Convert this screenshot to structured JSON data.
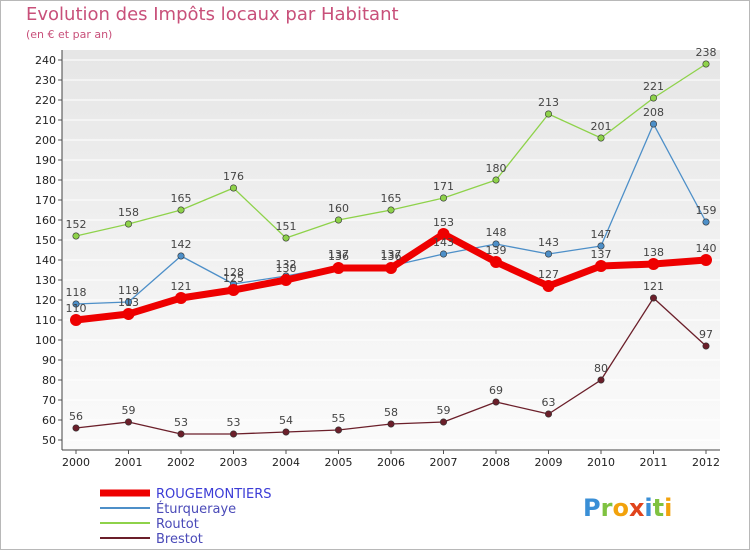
{
  "chart_data": {
    "type": "line",
    "title": "Evolution des Impôts locaux par Habitant",
    "subtitle": "(en € et par an)",
    "x": [
      "2000",
      "2001",
      "2002",
      "2003",
      "2004",
      "2005",
      "2006",
      "2007",
      "2008",
      "2009",
      "2010",
      "2011",
      "2012"
    ],
    "ylim": [
      50,
      240
    ],
    "ytick_step": 10,
    "series": [
      {
        "name": "ROUGEMONTIERS",
        "color": "#ee0000",
        "values": [
          110,
          113,
          121,
          125,
          130,
          136,
          136,
          153,
          139,
          127,
          137,
          138,
          140
        ],
        "labels": [
          "110",
          "113",
          "121",
          "125",
          "130",
          "136",
          "136",
          "153",
          "139",
          "127",
          "137",
          "138",
          "140"
        ]
      },
      {
        "name": "Éturqueraye",
        "color": "#4d8fc8",
        "values": [
          118,
          119,
          142,
          128,
          132,
          137,
          137,
          143,
          148,
          143,
          147,
          208,
          159
        ],
        "labels": [
          "118",
          "119",
          "142",
          "128",
          "132",
          "137",
          "137",
          "143",
          "148",
          "143",
          "147",
          "208",
          "159"
        ]
      },
      {
        "name": "Routot",
        "color": "#8ed24a",
        "values": [
          152,
          158,
          165,
          176,
          151,
          160,
          165,
          171,
          180,
          213,
          201,
          221,
          238
        ],
        "labels": [
          "152",
          "158",
          "165",
          "176",
          "151",
          "160",
          "165",
          "171",
          "180",
          "213",
          "201",
          "221",
          "238"
        ]
      },
      {
        "name": "Brestot",
        "color": "#6b1f2a",
        "values": [
          56,
          59,
          53,
          53,
          54,
          55,
          58,
          59,
          69,
          63,
          80,
          121,
          97
        ],
        "labels": [
          "56",
          "59",
          "53",
          "53",
          "54",
          "55",
          "58",
          "59",
          "69",
          "63",
          "80",
          "121",
          "97"
        ]
      }
    ]
  },
  "logo": {
    "text": "Proxiti"
  }
}
